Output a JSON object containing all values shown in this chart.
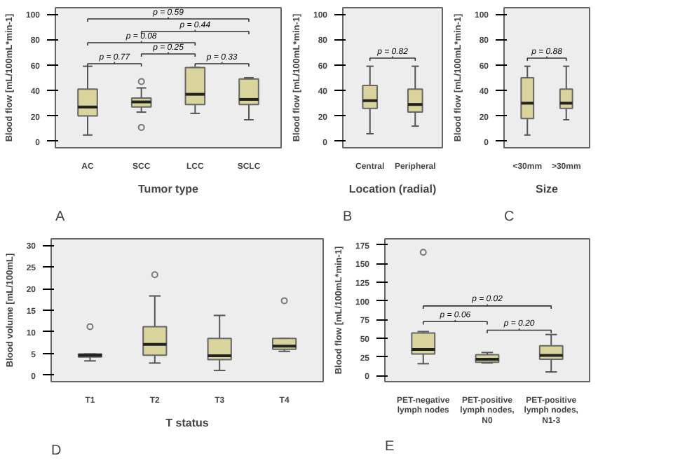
{
  "chart_data": [
    {
      "type": "box",
      "xlabel": "Tumor type",
      "ylabel": "Blood flow [mL/100mL*min-1]",
      "categories": [
        "AC",
        "SCC",
        "LCC",
        "SCLC"
      ],
      "color": "#d8d49b",
      "ylim": [
        -5,
        105
      ],
      "yticks": [
        0,
        20,
        40,
        60,
        80,
        100
      ],
      "boxes": [
        {
          "low": 5,
          "q1": 20,
          "median": 27,
          "q3": 41,
          "high": 59
        },
        {
          "low": 23,
          "q1": 27,
          "median": 31,
          "q3": 34,
          "high": 42,
          "outliers": [
            47,
            11
          ]
        },
        {
          "low": 22,
          "q1": 29,
          "median": 37,
          "q3": 58,
          "high": 58
        },
        {
          "low": 17,
          "q1": 29,
          "median": 33,
          "q3": 49,
          "high": 50
        }
      ],
      "annotations": [
        "A",
        "p = 0.77",
        "p = 0.25",
        "p = 0.33",
        "p = 0.08",
        "p = 0.44",
        "p = 0.59"
      ]
    },
    {
      "type": "box",
      "xlabel": "Location (radial)",
      "ylabel": "Blood flow [mL/100mL*min-1]",
      "categories": [
        "Central",
        "Peripheral"
      ],
      "color": "#d8d49b",
      "ylim": [
        -5,
        105
      ],
      "yticks": [
        0,
        20,
        40,
        60,
        80,
        100
      ],
      "boxes": [
        {
          "low": 6,
          "q1": 26,
          "median": 32,
          "q3": 44,
          "high": 59
        },
        {
          "low": 12,
          "q1": 23,
          "median": 29,
          "q3": 41,
          "high": 59
        }
      ],
      "annotations": [
        "B",
        "p = 0.82"
      ]
    },
    {
      "type": "box",
      "xlabel": "Size",
      "ylabel": "Blood flow [mL/100mL*min-1]",
      "categories": [
        "<30mm",
        ">30mm"
      ],
      "color": "#d8d49b",
      "ylim": [
        -5,
        105
      ],
      "yticks": [
        0,
        20,
        40,
        60,
        80,
        100
      ],
      "boxes": [
        {
          "low": 5,
          "q1": 18,
          "median": 30,
          "q3": 50,
          "high": 59
        },
        {
          "low": 17,
          "q1": 26,
          "median": 30,
          "q3": 41,
          "high": 59
        }
      ],
      "annotations": [
        "C",
        "p = 0.88"
      ]
    },
    {
      "type": "box",
      "xlabel": "T status",
      "ylabel": "Blood volume [mL/100mL]",
      "categories": [
        "T1",
        "T2",
        "T3",
        "T4"
      ],
      "color": "#d8d49b",
      "ylim": [
        -1.5,
        31.5
      ],
      "yticks": [
        0,
        5,
        10,
        15,
        20,
        25,
        30
      ],
      "boxes": [
        {
          "low": 3.3,
          "q1": 4.2,
          "median": 4.6,
          "q3": 4.9,
          "high": 4.9,
          "outliers": [
            11.2
          ]
        },
        {
          "low": 2.8,
          "q1": 4.6,
          "median": 7.1,
          "q3": 11.2,
          "high": 18.3,
          "outliers": [
            23.2
          ]
        },
        {
          "low": 1.1,
          "q1": 3.6,
          "median": 4.5,
          "q3": 8.5,
          "high": 13.8
        },
        {
          "low": 5.5,
          "q1": 6,
          "median": 6.7,
          "q3": 8.5,
          "high": 8.5,
          "outliers": [
            17.2
          ]
        }
      ],
      "annotations": [
        "D"
      ]
    },
    {
      "type": "box",
      "ylabel": "Blood flow [mL/100mL*min-1]",
      "categories": [
        "PET-negative\nlymph nodes",
        "PET-positive\nlymph nodes,\nN0",
        "PET-positive\nlymph nodes,\nN1-3"
      ],
      "color": "#d8d49b",
      "ylim": [
        -8,
        183
      ],
      "yticks": [
        0,
        25,
        50,
        75,
        100,
        125,
        150,
        175
      ],
      "boxes": [
        {
          "low": 16,
          "q1": 29,
          "median": 35,
          "q3": 57,
          "high": 59,
          "outliers": [
            165
          ]
        },
        {
          "low": 17,
          "q1": 18,
          "median": 22,
          "q3": 28,
          "high": 31
        },
        {
          "low": 5,
          "q1": 22,
          "median": 27,
          "q3": 40,
          "high": 55
        }
      ],
      "annotations": [
        "E",
        "p = 0.06",
        "p = 0.20",
        "p = 0.02"
      ]
    }
  ]
}
